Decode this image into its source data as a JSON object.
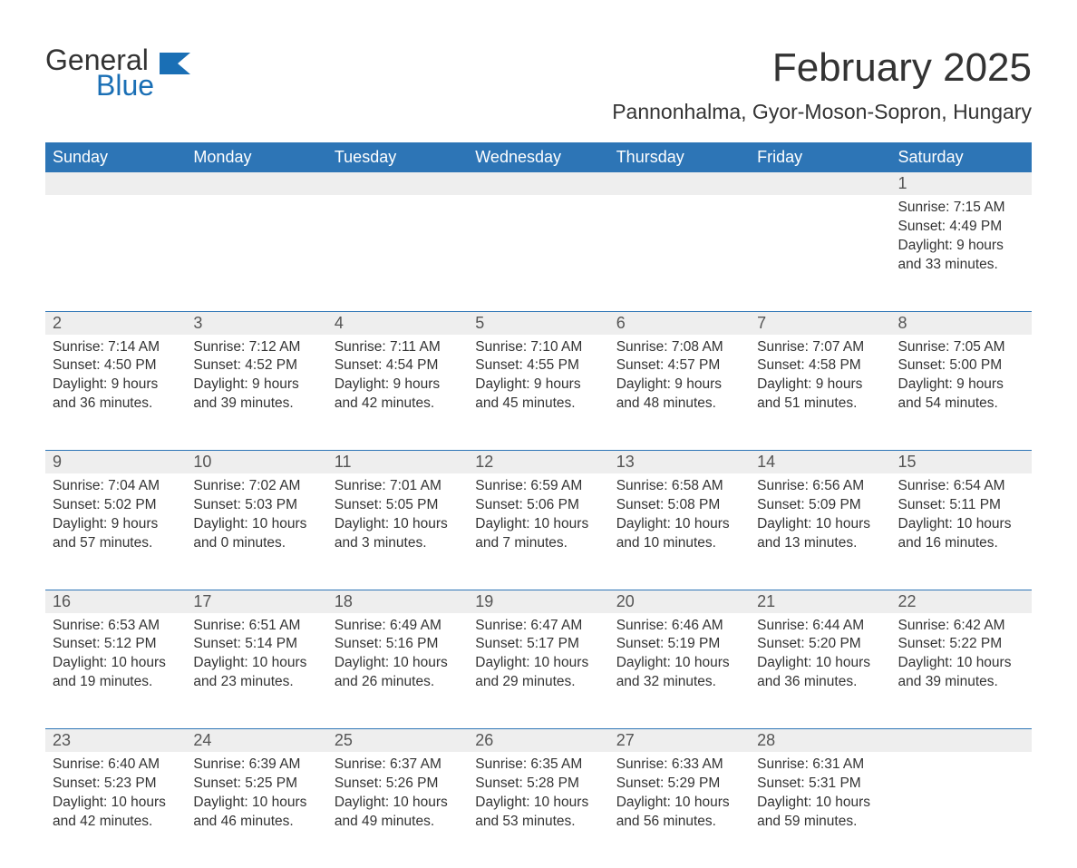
{
  "logo": {
    "word1": "General",
    "word2": "Blue",
    "brand_color": "#1a6fb5"
  },
  "title": "February 2025",
  "location": "Pannonhalma, Gyor-Moson-Sopron, Hungary",
  "colors": {
    "header_bg": "#2d75b6",
    "header_text": "#ffffff",
    "daynum_bg": "#eeeeee",
    "cell_border": "#2d75b6",
    "body_text": "#333333",
    "page_bg": "#ffffff"
  },
  "fonts": {
    "title_size": 44,
    "location_size": 23,
    "header_size": 18,
    "daynum_size": 18,
    "cell_size": 15.5
  },
  "day_headers": [
    "Sunday",
    "Monday",
    "Tuesday",
    "Wednesday",
    "Thursday",
    "Friday",
    "Saturday"
  ],
  "weeks": [
    [
      null,
      null,
      null,
      null,
      null,
      null,
      {
        "n": "1",
        "sunrise": "7:15 AM",
        "sunset": "4:49 PM",
        "daylight1": "9 hours",
        "daylight2": "and 33 minutes."
      }
    ],
    [
      {
        "n": "2",
        "sunrise": "7:14 AM",
        "sunset": "4:50 PM",
        "daylight1": "9 hours",
        "daylight2": "and 36 minutes."
      },
      {
        "n": "3",
        "sunrise": "7:12 AM",
        "sunset": "4:52 PM",
        "daylight1": "9 hours",
        "daylight2": "and 39 minutes."
      },
      {
        "n": "4",
        "sunrise": "7:11 AM",
        "sunset": "4:54 PM",
        "daylight1": "9 hours",
        "daylight2": "and 42 minutes."
      },
      {
        "n": "5",
        "sunrise": "7:10 AM",
        "sunset": "4:55 PM",
        "daylight1": "9 hours",
        "daylight2": "and 45 minutes."
      },
      {
        "n": "6",
        "sunrise": "7:08 AM",
        "sunset": "4:57 PM",
        "daylight1": "9 hours",
        "daylight2": "and 48 minutes."
      },
      {
        "n": "7",
        "sunrise": "7:07 AM",
        "sunset": "4:58 PM",
        "daylight1": "9 hours",
        "daylight2": "and 51 minutes."
      },
      {
        "n": "8",
        "sunrise": "7:05 AM",
        "sunset": "5:00 PM",
        "daylight1": "9 hours",
        "daylight2": "and 54 minutes."
      }
    ],
    [
      {
        "n": "9",
        "sunrise": "7:04 AM",
        "sunset": "5:02 PM",
        "daylight1": "9 hours",
        "daylight2": "and 57 minutes."
      },
      {
        "n": "10",
        "sunrise": "7:02 AM",
        "sunset": "5:03 PM",
        "daylight1": "10 hours",
        "daylight2": "and 0 minutes."
      },
      {
        "n": "11",
        "sunrise": "7:01 AM",
        "sunset": "5:05 PM",
        "daylight1": "10 hours",
        "daylight2": "and 3 minutes."
      },
      {
        "n": "12",
        "sunrise": "6:59 AM",
        "sunset": "5:06 PM",
        "daylight1": "10 hours",
        "daylight2": "and 7 minutes."
      },
      {
        "n": "13",
        "sunrise": "6:58 AM",
        "sunset": "5:08 PM",
        "daylight1": "10 hours",
        "daylight2": "and 10 minutes."
      },
      {
        "n": "14",
        "sunrise": "6:56 AM",
        "sunset": "5:09 PM",
        "daylight1": "10 hours",
        "daylight2": "and 13 minutes."
      },
      {
        "n": "15",
        "sunrise": "6:54 AM",
        "sunset": "5:11 PM",
        "daylight1": "10 hours",
        "daylight2": "and 16 minutes."
      }
    ],
    [
      {
        "n": "16",
        "sunrise": "6:53 AM",
        "sunset": "5:12 PM",
        "daylight1": "10 hours",
        "daylight2": "and 19 minutes."
      },
      {
        "n": "17",
        "sunrise": "6:51 AM",
        "sunset": "5:14 PM",
        "daylight1": "10 hours",
        "daylight2": "and 23 minutes."
      },
      {
        "n": "18",
        "sunrise": "6:49 AM",
        "sunset": "5:16 PM",
        "daylight1": "10 hours",
        "daylight2": "and 26 minutes."
      },
      {
        "n": "19",
        "sunrise": "6:47 AM",
        "sunset": "5:17 PM",
        "daylight1": "10 hours",
        "daylight2": "and 29 minutes."
      },
      {
        "n": "20",
        "sunrise": "6:46 AM",
        "sunset": "5:19 PM",
        "daylight1": "10 hours",
        "daylight2": "and 32 minutes."
      },
      {
        "n": "21",
        "sunrise": "6:44 AM",
        "sunset": "5:20 PM",
        "daylight1": "10 hours",
        "daylight2": "and 36 minutes."
      },
      {
        "n": "22",
        "sunrise": "6:42 AM",
        "sunset": "5:22 PM",
        "daylight1": "10 hours",
        "daylight2": "and 39 minutes."
      }
    ],
    [
      {
        "n": "23",
        "sunrise": "6:40 AM",
        "sunset": "5:23 PM",
        "daylight1": "10 hours",
        "daylight2": "and 42 minutes."
      },
      {
        "n": "24",
        "sunrise": "6:39 AM",
        "sunset": "5:25 PM",
        "daylight1": "10 hours",
        "daylight2": "and 46 minutes."
      },
      {
        "n": "25",
        "sunrise": "6:37 AM",
        "sunset": "5:26 PM",
        "daylight1": "10 hours",
        "daylight2": "and 49 minutes."
      },
      {
        "n": "26",
        "sunrise": "6:35 AM",
        "sunset": "5:28 PM",
        "daylight1": "10 hours",
        "daylight2": "and 53 minutes."
      },
      {
        "n": "27",
        "sunrise": "6:33 AM",
        "sunset": "5:29 PM",
        "daylight1": "10 hours",
        "daylight2": "and 56 minutes."
      },
      {
        "n": "28",
        "sunrise": "6:31 AM",
        "sunset": "5:31 PM",
        "daylight1": "10 hours",
        "daylight2": "and 59 minutes."
      },
      null
    ]
  ],
  "labels": {
    "sunrise": "Sunrise: ",
    "sunset": "Sunset: ",
    "daylight": "Daylight: "
  }
}
